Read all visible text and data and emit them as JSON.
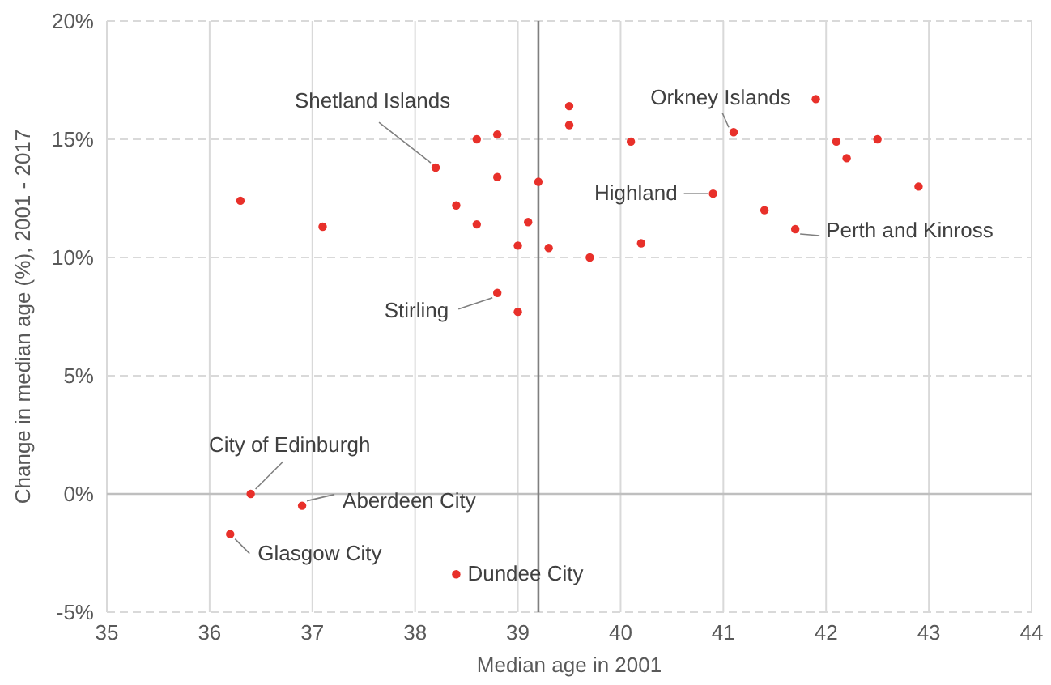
{
  "chart_data": {
    "type": "scatter",
    "xlabel": "Median age in 2001",
    "ylabel": "Change in median age (%), 2001 - 2017",
    "series": [
      {
        "color": "#e8302a",
        "x": [
          36.3,
          37.1,
          38.2,
          38.6,
          38.8,
          38.8,
          38.4,
          38.6,
          39.1,
          39.2,
          39.0,
          39.3,
          38.8,
          39.0,
          39.5,
          39.5,
          40.1,
          41.1,
          41.9,
          42.1,
          42.5,
          42.2,
          42.9,
          40.9,
          41.4,
          41.7,
          40.2,
          39.7,
          36.4,
          36.9,
          36.2,
          38.4
        ],
        "values": [
          12.4,
          11.3,
          13.8,
          15.0,
          15.2,
          13.4,
          12.2,
          11.4,
          11.5,
          13.2,
          10.5,
          10.4,
          8.5,
          7.7,
          16.4,
          15.6,
          14.9,
          15.3,
          16.7,
          14.9,
          15.0,
          14.2,
          13.0,
          12.7,
          12.0,
          11.2,
          10.6,
          10.0,
          0.0,
          -0.5,
          -1.7,
          -3.4
        ]
      }
    ],
    "xlim": [
      35,
      44
    ],
    "xticks": [
      35,
      36,
      37,
      38,
      39,
      40,
      41,
      42,
      43,
      44
    ],
    "ylim": [
      -5,
      20
    ],
    "yticks": [
      {
        "value": -5,
        "label": "-5%"
      },
      {
        "value": 0,
        "label": "0%"
      },
      {
        "value": 5,
        "label": "5%"
      },
      {
        "value": 10,
        "label": "10%"
      },
      {
        "value": 15,
        "label": "15%"
      },
      {
        "value": 20,
        "label": "20%"
      }
    ],
    "grid": true,
    "marker": "circle",
    "legend": false,
    "ref_lines": [
      {
        "axis": "y",
        "value": 0,
        "color": "#bfbfbf"
      },
      {
        "axis": "x",
        "value": 39.2,
        "color": "#7f7f7f"
      }
    ],
    "annotations": [
      {
        "text": "Shetland Islands",
        "x": 38.2,
        "y": 13.8
      },
      {
        "text": "Orkney Islands",
        "x": 41.1,
        "y": 15.3
      },
      {
        "text": "Highland",
        "x": 40.9,
        "y": 12.7
      },
      {
        "text": "Perth and Kinross",
        "x": 41.7,
        "y": 11.2
      },
      {
        "text": "Stirling",
        "x": 38.8,
        "y": 8.5
      },
      {
        "text": "City of Edinburgh",
        "x": 36.4,
        "y": 0.0
      },
      {
        "text": "Aberdeen City",
        "x": 36.9,
        "y": -0.5
      },
      {
        "text": "Glasgow City",
        "x": 36.2,
        "y": -1.7
      },
      {
        "text": "Dundee City",
        "x": 38.4,
        "y": -3.4
      }
    ]
  }
}
